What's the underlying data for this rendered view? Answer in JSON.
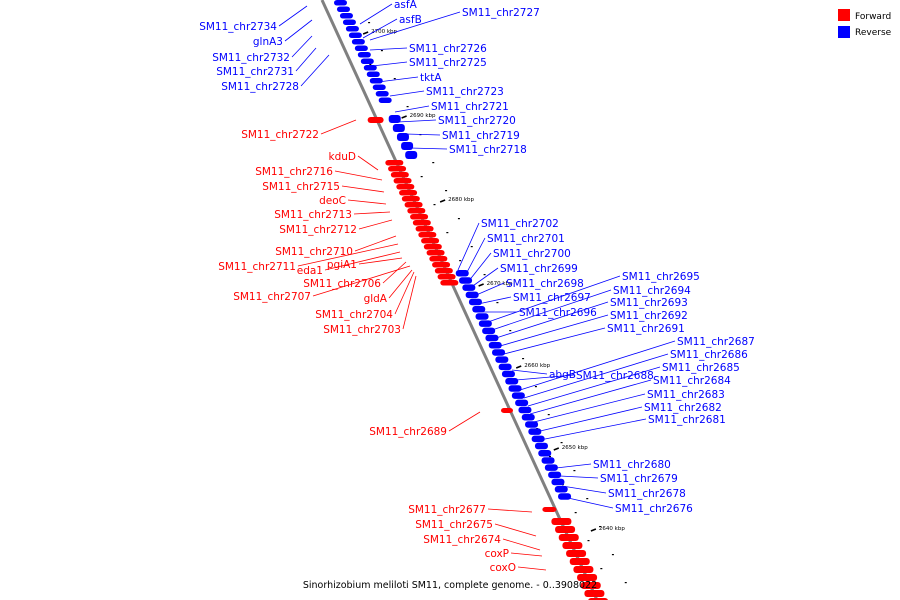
{
  "caption": "Sinorhizobium meliloti SM11, complete genome. - 0..3908022",
  "legend": [
    {
      "label": "Forward",
      "color": "#ff0000"
    },
    {
      "label": "Reverse",
      "color": "#0000ff"
    }
  ],
  "colors": {
    "forward": "#ff0000",
    "reverse": "#0000ff",
    "axis": "#808080"
  },
  "kbp_ticks": [
    "2700 kbp",
    "2690 kbp",
    "2680 kbp",
    "2670 kbp",
    "2660 kbp",
    "2650 kbp",
    "2640 kbp"
  ],
  "reverse_labels": [
    "SM11_chr2734",
    "glnA3",
    "SM11_chr2732",
    "SM11_chr2731",
    "SM11_chr2728",
    "asfA",
    "asfB",
    "SM11_chr2727",
    "SM11_chr2726",
    "SM11_chr2725",
    "tktA",
    "SM11_chr2723",
    "SM11_chr2721",
    "SM11_chr2720",
    "SM11_chr2719",
    "SM11_chr2718",
    "SM11_chr2702",
    "SM11_chr2701",
    "SM11_chr2700",
    "SM11_chr2699",
    "SM11_chr2698",
    "SM11_chr2697",
    "SM11_chr2696",
    "SM11_chr2695",
    "SM11_chr2694",
    "SM11_chr2693",
    "SM11_chr2692",
    "SM11_chr2691",
    "abgB",
    "SM11_chr2688",
    "SM11_chr2687",
    "SM11_chr2686",
    "SM11_chr2685",
    "SM11_chr2684",
    "SM11_chr2683",
    "SM11_chr2682",
    "SM11_chr2681",
    "SM11_chr2680",
    "SM11_chr2679",
    "SM11_chr2678",
    "SM11_chr2676"
  ],
  "forward_labels": [
    "SM11_chr2722",
    "kduD",
    "SM11_chr2716",
    "SM11_chr2715",
    "deoC",
    "SM11_chr2713",
    "SM11_chr2712",
    "SM11_chr2710",
    "SM11_chr2711",
    "eda1",
    "pgiA1",
    "SM11_chr2706",
    "SM11_chr2707",
    "gldA",
    "SM11_chr2704",
    "SM11_chr2703",
    "SM11_chr2689",
    "SM11_chr2677",
    "SM11_chr2675",
    "SM11_chr2674",
    "coxP",
    "coxO"
  ]
}
